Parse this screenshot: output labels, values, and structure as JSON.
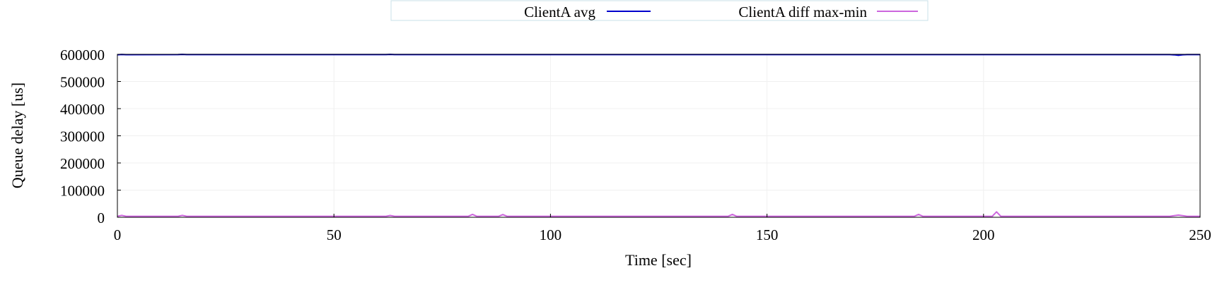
{
  "chart_data": {
    "type": "line",
    "xlabel": "Time [sec]",
    "ylabel": "Queue delay [us]",
    "xlim": [
      0,
      250
    ],
    "ylim": [
      0,
      600000
    ],
    "x_ticks": [
      0,
      50,
      100,
      150,
      200,
      250
    ],
    "y_ticks": [
      0,
      100000,
      200000,
      300000,
      400000,
      500000,
      600000
    ],
    "grid": true,
    "legend_position": "top-center",
    "series": [
      {
        "name": "ClientA avg",
        "color": "#0000cc",
        "points": [
          [
            0,
            598500
          ],
          [
            1,
            599500
          ],
          [
            2,
            598800
          ],
          [
            14,
            598900
          ],
          [
            15,
            599700
          ],
          [
            16,
            598900
          ],
          [
            62,
            598900
          ],
          [
            63,
            599800
          ],
          [
            64,
            598900
          ],
          [
            243,
            598900
          ],
          [
            244,
            598200
          ],
          [
            245,
            596500
          ],
          [
            246,
            598300
          ],
          [
            247,
            598900
          ],
          [
            250,
            598900
          ]
        ]
      },
      {
        "name": "ClientA diff max-min",
        "color": "#cc66dd",
        "points": [
          [
            0,
            3500
          ],
          [
            1,
            7000
          ],
          [
            2,
            3500
          ],
          [
            14,
            3500
          ],
          [
            15,
            7000
          ],
          [
            16,
            3500
          ],
          [
            62,
            3500
          ],
          [
            63,
            6500
          ],
          [
            64,
            3500
          ],
          [
            81,
            3500
          ],
          [
            82,
            10500
          ],
          [
            83,
            3500
          ],
          [
            88,
            3500
          ],
          [
            89,
            10000
          ],
          [
            90,
            3500
          ],
          [
            141,
            3500
          ],
          [
            142,
            10500
          ],
          [
            143,
            3500
          ],
          [
            184,
            3500
          ],
          [
            185,
            10500
          ],
          [
            186,
            3500
          ],
          [
            202,
            3500
          ],
          [
            203,
            20000
          ],
          [
            204,
            3500
          ],
          [
            243,
            3500
          ],
          [
            245,
            8000
          ],
          [
            247,
            3500
          ],
          [
            250,
            3500
          ]
        ]
      }
    ]
  }
}
